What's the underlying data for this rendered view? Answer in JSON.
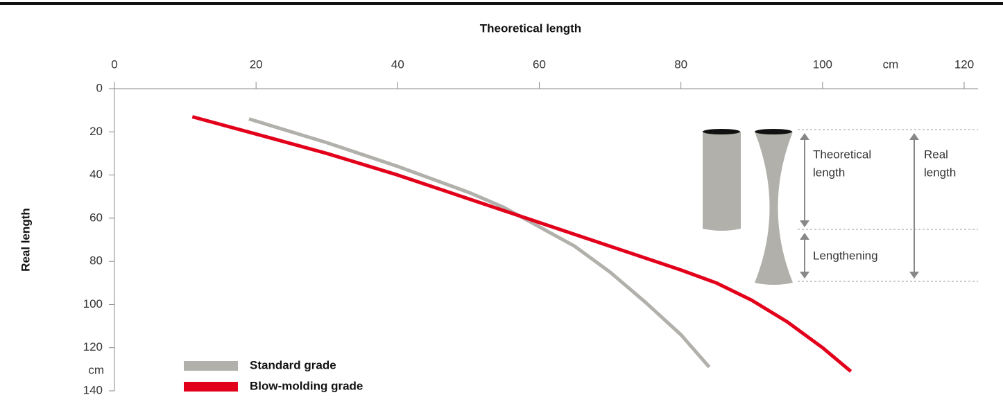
{
  "chart_data": {
    "type": "line",
    "title": "Theoretical length",
    "y_label": "Real length",
    "x_unit": "cm",
    "y_unit": "cm",
    "xlim": [
      0,
      120
    ],
    "xticks": [
      0,
      20,
      40,
      60,
      80,
      100,
      120
    ],
    "ylim": [
      0,
      140
    ],
    "yticks": [
      0,
      20,
      40,
      60,
      80,
      100,
      120,
      140
    ],
    "y_inverted": true,
    "legend": "bottom-left",
    "series": [
      {
        "name": "Standard grade",
        "color": "#b2b0ab",
        "x": [
          19,
          30,
          40,
          50,
          55,
          60,
          65,
          70,
          75,
          80,
          84
        ],
        "values": [
          14,
          25,
          36,
          48,
          55,
          64,
          73,
          85,
          99,
          114,
          129
        ]
      },
      {
        "name": "Blow-molding grade",
        "color": "#e2001a",
        "x": [
          11,
          20,
          30,
          40,
          50,
          60,
          70,
          80,
          85,
          90,
          95,
          100,
          104
        ],
        "values": [
          13,
          21,
          30,
          40,
          51,
          62,
          73,
          84,
          90,
          98,
          108,
          120,
          131
        ]
      }
    ],
    "annotations": {
      "theoretical_length": [
        "Theoretical",
        "length"
      ],
      "real_length": [
        "Real",
        "length"
      ],
      "lengthening": "Lengthening"
    }
  }
}
